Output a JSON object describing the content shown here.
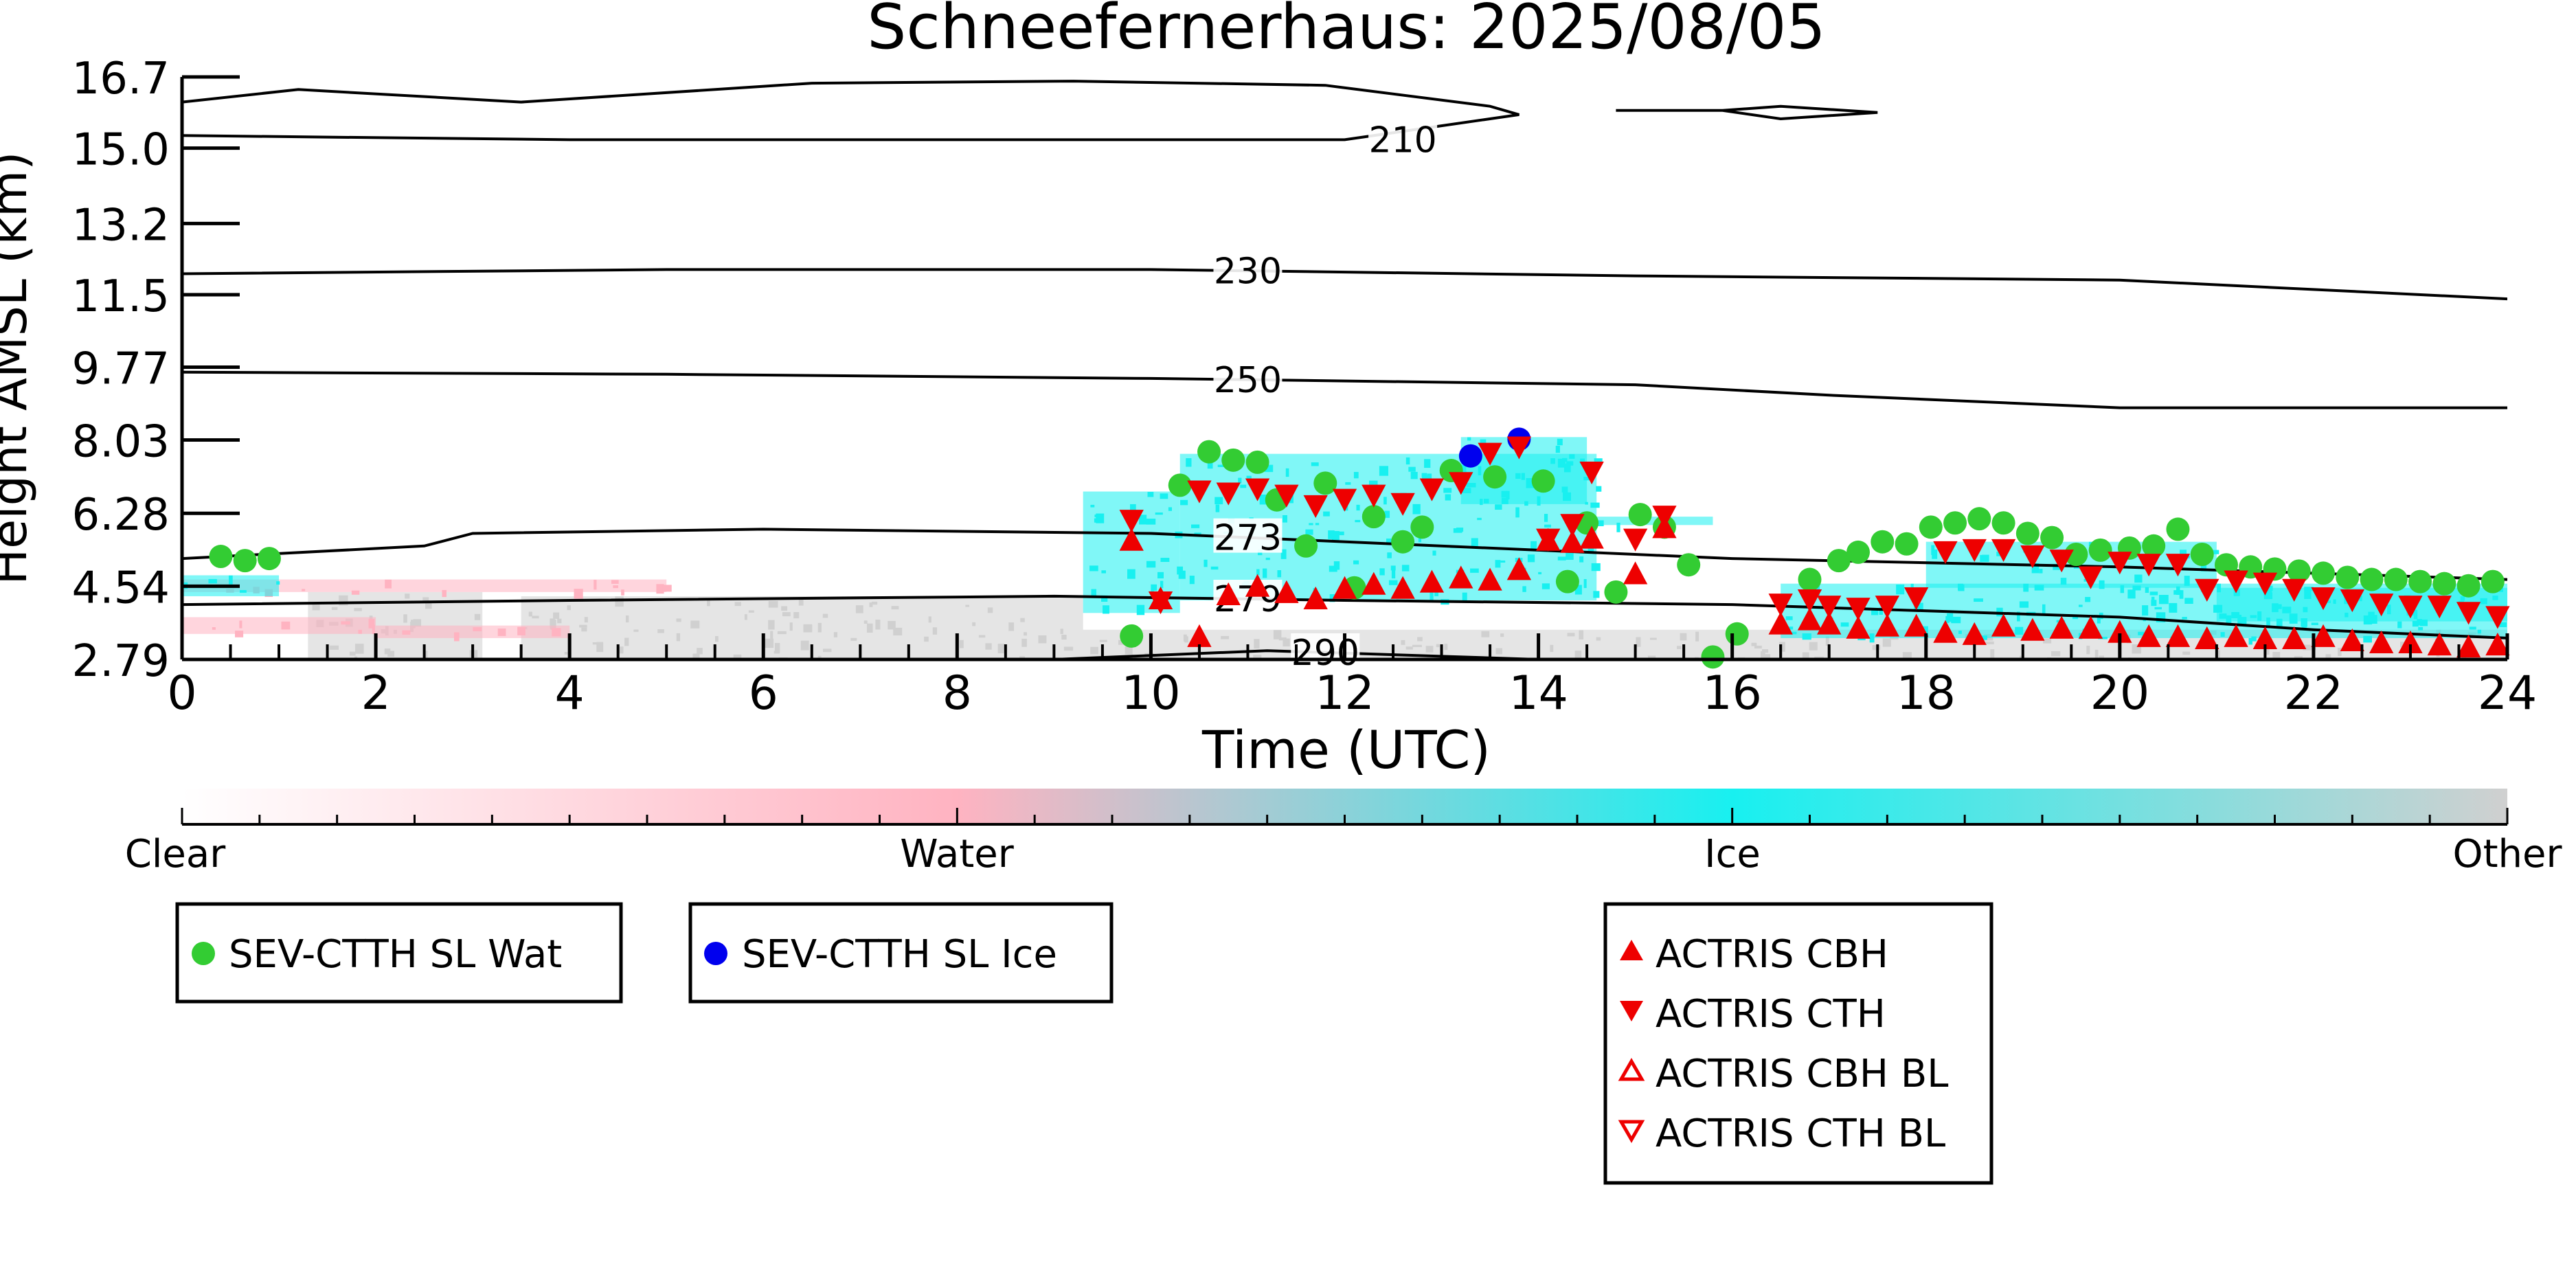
{
  "chart_data": {
    "type": "scatter",
    "title": "Schneefernerhaus: 2025/08/05",
    "xlabel": "Time (UTC)",
    "ylabel": "Height AMSL (km)",
    "xlim": [
      0,
      24
    ],
    "ylim": [
      2.79,
      16.7
    ],
    "x_ticks": [
      "0",
      "2",
      "4",
      "6",
      "8",
      "10",
      "12",
      "14",
      "16",
      "18",
      "20",
      "22",
      "24"
    ],
    "y_ticks": [
      "2.79",
      "4.54",
      "6.28",
      "8.03",
      "9.77",
      "11.5",
      "13.2",
      "15.0",
      "16.7"
    ],
    "colorbar": {
      "labels": [
        "Clear",
        "Water",
        "Ice",
        "Other"
      ],
      "colors": [
        "#ffffff",
        "#ffb3c1",
        "#18f0f0",
        "#d0d0d0"
      ]
    },
    "contours": [
      {
        "label": "210",
        "points": [
          [
            0,
            16.1
          ],
          [
            1.2,
            16.4
          ],
          [
            3.5,
            16.1
          ],
          [
            6.5,
            16.55
          ],
          [
            9.2,
            16.6
          ],
          [
            11.8,
            16.5
          ],
          [
            13.5,
            16.0
          ],
          [
            13.8,
            15.8
          ],
          [
            12.0,
            15.2
          ],
          [
            9.0,
            15.2
          ],
          [
            4.0,
            15.2
          ],
          [
            0,
            15.3
          ]
        ]
      },
      {
        "label": "210",
        "points": [
          [
            14.8,
            15.9
          ],
          [
            15.9,
            15.9
          ],
          [
            16.5,
            16.0
          ],
          [
            17.5,
            15.85
          ],
          [
            16.5,
            15.7
          ],
          [
            15.9,
            15.9
          ],
          [
            14.8,
            15.9
          ]
        ]
      },
      {
        "label": "230",
        "points": [
          [
            0,
            12.0
          ],
          [
            5,
            12.1
          ],
          [
            10,
            12.1
          ],
          [
            15,
            11.95
          ],
          [
            20,
            11.85
          ],
          [
            24,
            11.4
          ]
        ]
      },
      {
        "label": "250",
        "points": [
          [
            0,
            9.65
          ],
          [
            5,
            9.6
          ],
          [
            10,
            9.5
          ],
          [
            15,
            9.35
          ],
          [
            17,
            9.1
          ],
          [
            20,
            8.8
          ],
          [
            24,
            8.8
          ]
        ]
      },
      {
        "label": "273",
        "points": [
          [
            0,
            5.2
          ],
          [
            2.5,
            5.5
          ],
          [
            3,
            5.8
          ],
          [
            6,
            5.9
          ],
          [
            10,
            5.8
          ],
          [
            14,
            5.4
          ],
          [
            16,
            5.2
          ],
          [
            20,
            5.0
          ],
          [
            24,
            4.7
          ]
        ]
      },
      {
        "label": "279",
        "points": [
          [
            0,
            4.1
          ],
          [
            4,
            4.2
          ],
          [
            9,
            4.3
          ],
          [
            12,
            4.2
          ],
          [
            16,
            4.1
          ],
          [
            20,
            3.8
          ],
          [
            22,
            3.5
          ],
          [
            24,
            3.3
          ]
        ]
      },
      {
        "label": "290",
        "points": [
          [
            9,
            2.79
          ],
          [
            11.2,
            3.0
          ],
          [
            14,
            2.79
          ]
        ]
      }
    ],
    "series": [
      {
        "name": "SEV-CTTH SL Wat",
        "color": "#33cc33",
        "marker": "circle",
        "points": [
          [
            0.4,
            5.25
          ],
          [
            0.65,
            5.15
          ],
          [
            0.9,
            5.2
          ],
          [
            9.8,
            3.35
          ],
          [
            10.3,
            6.95
          ],
          [
            10.6,
            7.75
          ],
          [
            10.85,
            7.55
          ],
          [
            11.1,
            7.5
          ],
          [
            11.3,
            6.6
          ],
          [
            11.6,
            5.5
          ],
          [
            11.8,
            7.0
          ],
          [
            12.1,
            4.5
          ],
          [
            12.3,
            6.2
          ],
          [
            12.6,
            5.6
          ],
          [
            12.8,
            5.95
          ],
          [
            13.1,
            7.3
          ],
          [
            13.55,
            7.15
          ],
          [
            14.05,
            7.05
          ],
          [
            14.3,
            4.65
          ],
          [
            14.5,
            6.05
          ],
          [
            14.8,
            4.4
          ],
          [
            15.05,
            6.25
          ],
          [
            15.3,
            5.95
          ],
          [
            15.55,
            5.05
          ],
          [
            15.8,
            2.85
          ],
          [
            16.05,
            3.4
          ],
          [
            16.8,
            4.7
          ],
          [
            17.1,
            5.15
          ],
          [
            17.3,
            5.35
          ],
          [
            17.55,
            5.6
          ],
          [
            17.8,
            5.55
          ],
          [
            18.05,
            5.95
          ],
          [
            18.3,
            6.05
          ],
          [
            18.55,
            6.15
          ],
          [
            18.8,
            6.05
          ],
          [
            19.05,
            5.8
          ],
          [
            19.3,
            5.7
          ],
          [
            19.55,
            5.3
          ],
          [
            19.8,
            5.4
          ],
          [
            20.1,
            5.45
          ],
          [
            20.35,
            5.5
          ],
          [
            20.6,
            5.9
          ],
          [
            20.85,
            5.3
          ],
          [
            21.1,
            5.05
          ],
          [
            21.35,
            5.0
          ],
          [
            21.6,
            4.95
          ],
          [
            21.85,
            4.9
          ],
          [
            22.1,
            4.85
          ],
          [
            22.35,
            4.75
          ],
          [
            22.6,
            4.7
          ],
          [
            22.85,
            4.7
          ],
          [
            23.1,
            4.65
          ],
          [
            23.35,
            4.6
          ],
          [
            23.6,
            4.55
          ],
          [
            23.85,
            4.65
          ]
        ]
      },
      {
        "name": "SEV-CTTH SL Ice",
        "color": "#0000ee",
        "marker": "circle",
        "points": [
          [
            13.3,
            7.65
          ],
          [
            13.8,
            8.05
          ]
        ]
      },
      {
        "name": "ACTRIS CBH",
        "color": "#ee0000",
        "marker": "triangle-up",
        "points": [
          [
            9.8,
            5.6
          ],
          [
            10.1,
            4.2
          ],
          [
            10.5,
            3.3
          ],
          [
            10.8,
            4.3
          ],
          [
            11.1,
            4.5
          ],
          [
            11.4,
            4.35
          ],
          [
            11.7,
            4.2
          ],
          [
            12.0,
            4.45
          ],
          [
            12.3,
            4.55
          ],
          [
            12.6,
            4.45
          ],
          [
            12.9,
            4.6
          ],
          [
            13.2,
            4.7
          ],
          [
            13.5,
            4.65
          ],
          [
            13.8,
            4.9
          ],
          [
            14.1,
            5.6
          ],
          [
            14.35,
            5.55
          ],
          [
            14.55,
            5.65
          ],
          [
            15.0,
            4.8
          ],
          [
            15.3,
            5.9
          ],
          [
            16.5,
            3.6
          ],
          [
            16.8,
            3.7
          ],
          [
            17.0,
            3.6
          ],
          [
            17.3,
            3.5
          ],
          [
            17.6,
            3.55
          ],
          [
            17.9,
            3.55
          ],
          [
            18.2,
            3.4
          ],
          [
            18.5,
            3.35
          ],
          [
            18.8,
            3.55
          ],
          [
            19.1,
            3.45
          ],
          [
            19.4,
            3.5
          ],
          [
            19.7,
            3.5
          ],
          [
            20.0,
            3.4
          ],
          [
            20.3,
            3.3
          ],
          [
            20.6,
            3.3
          ],
          [
            20.9,
            3.25
          ],
          [
            21.2,
            3.3
          ],
          [
            21.5,
            3.25
          ],
          [
            21.8,
            3.25
          ],
          [
            22.1,
            3.3
          ],
          [
            22.4,
            3.2
          ],
          [
            22.7,
            3.15
          ],
          [
            23.0,
            3.15
          ],
          [
            23.3,
            3.1
          ],
          [
            23.6,
            3.05
          ],
          [
            23.9,
            3.1
          ]
        ]
      },
      {
        "name": "ACTRIS CTH",
        "color": "#ee0000",
        "marker": "triangle-down",
        "points": [
          [
            9.8,
            6.15
          ],
          [
            10.1,
            4.2
          ],
          [
            10.5,
            6.85
          ],
          [
            10.8,
            6.8
          ],
          [
            11.1,
            6.9
          ],
          [
            11.4,
            6.75
          ],
          [
            11.7,
            6.5
          ],
          [
            12.0,
            6.65
          ],
          [
            12.3,
            6.75
          ],
          [
            12.6,
            6.55
          ],
          [
            12.9,
            6.9
          ],
          [
            13.2,
            7.05
          ],
          [
            13.5,
            7.75
          ],
          [
            13.8,
            7.9
          ],
          [
            14.1,
            5.7
          ],
          [
            14.35,
            6.05
          ],
          [
            14.55,
            7.3
          ],
          [
            15.0,
            5.7
          ],
          [
            15.3,
            6.25
          ],
          [
            16.5,
            4.15
          ],
          [
            16.8,
            4.25
          ],
          [
            17.0,
            4.1
          ],
          [
            17.3,
            4.05
          ],
          [
            17.6,
            4.1
          ],
          [
            17.9,
            4.3
          ],
          [
            18.2,
            5.4
          ],
          [
            18.5,
            5.45
          ],
          [
            18.8,
            5.45
          ],
          [
            19.1,
            5.3
          ],
          [
            19.4,
            5.2
          ],
          [
            19.7,
            4.8
          ],
          [
            20.0,
            5.15
          ],
          [
            20.3,
            5.1
          ],
          [
            20.6,
            5.1
          ],
          [
            20.9,
            4.5
          ],
          [
            21.2,
            4.7
          ],
          [
            21.5,
            4.65
          ],
          [
            21.8,
            4.5
          ],
          [
            22.1,
            4.3
          ],
          [
            22.4,
            4.25
          ],
          [
            22.7,
            4.15
          ],
          [
            23.0,
            4.1
          ],
          [
            23.3,
            4.1
          ],
          [
            23.6,
            3.95
          ],
          [
            23.9,
            3.85
          ]
        ]
      },
      {
        "name": "ACTRIS CBH BL",
        "color": "#ee0000",
        "marker": "triangle-up-open",
        "points": []
      },
      {
        "name": "ACTRIS CTH BL",
        "color": "#ee0000",
        "marker": "triangle-down-open",
        "points": []
      }
    ],
    "cloud_mask": {
      "water": [
        [
          0,
          5,
          4.4,
          4.7
        ],
        [
          0,
          2,
          3.4,
          3.8
        ],
        [
          2,
          4,
          3.3,
          3.6
        ]
      ],
      "ice": [
        [
          0,
          1,
          4.3,
          4.8
        ],
        [
          9.3,
          10.3,
          3.9,
          6.8
        ],
        [
          10.3,
          14.6,
          4.2,
          7.7
        ],
        [
          13.2,
          14.5,
          6.5,
          8.1
        ],
        [
          14.6,
          15.8,
          6.0,
          6.2
        ],
        [
          16.5,
          24,
          3.3,
          4.6
        ],
        [
          18,
          21,
          4.5,
          5.6
        ],
        [
          21,
          24,
          3.7,
          4.5
        ]
      ],
      "other": [
        [
          1.3,
          3.1,
          2.79,
          4.4
        ],
        [
          3.5,
          9.3,
          2.79,
          4.3
        ],
        [
          9.3,
          24,
          2.79,
          3.5
        ]
      ]
    },
    "legends": [
      {
        "entries": [
          "SEV-CTTH SL Wat"
        ]
      },
      {
        "entries": [
          "SEV-CTTH SL Ice"
        ]
      },
      {
        "entries": [
          "ACTRIS CBH",
          "ACTRIS CTH",
          "ACTRIS CBH BL",
          "ACTRIS CTH BL"
        ]
      }
    ],
    "grid": false
  }
}
